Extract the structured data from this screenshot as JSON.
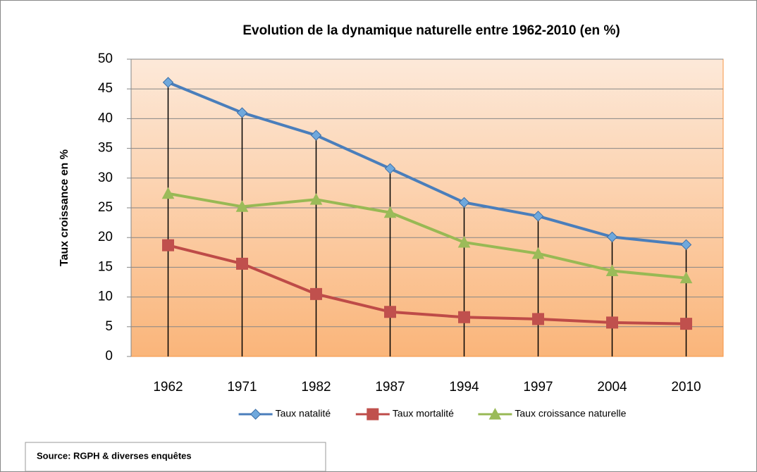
{
  "chart_data": {
    "type": "line",
    "title": "Evolution de la dynamique naturelle entre 1962-2010 (en %)",
    "y_label": "Taux croissance en %",
    "categories": [
      "1962",
      "1971",
      "1982",
      "1987",
      "1994",
      "1997",
      "2004",
      "2010"
    ],
    "series": [
      {
        "name": "Taux natalité",
        "color": "#4a7ebb",
        "marker": "diamond",
        "marker_color": "#6fa8dc",
        "values": [
          46.1,
          41.0,
          37.2,
          31.6,
          25.9,
          23.6,
          20.1,
          18.8
        ]
      },
      {
        "name": "Taux mortalité",
        "color": "#be4b48",
        "marker": "square",
        "marker_color": "#c0504d",
        "values": [
          18.7,
          15.6,
          10.5,
          7.5,
          6.6,
          6.3,
          5.7,
          5.5
        ]
      },
      {
        "name": "Taux croissance naturelle",
        "color": "#98b954",
        "marker": "triangle",
        "marker_color": "#9bbb59",
        "values": [
          27.4,
          25.2,
          26.4,
          24.2,
          19.2,
          17.3,
          14.4,
          13.2
        ]
      }
    ],
    "ylim": [
      0,
      50
    ],
    "yticks": [
      0,
      5,
      10,
      15,
      20,
      25,
      30,
      35,
      40,
      45,
      50
    ],
    "grid": true,
    "drop_lines": true,
    "legend": "bottom"
  },
  "source": "Source: RGPH & diverses enquêtes"
}
